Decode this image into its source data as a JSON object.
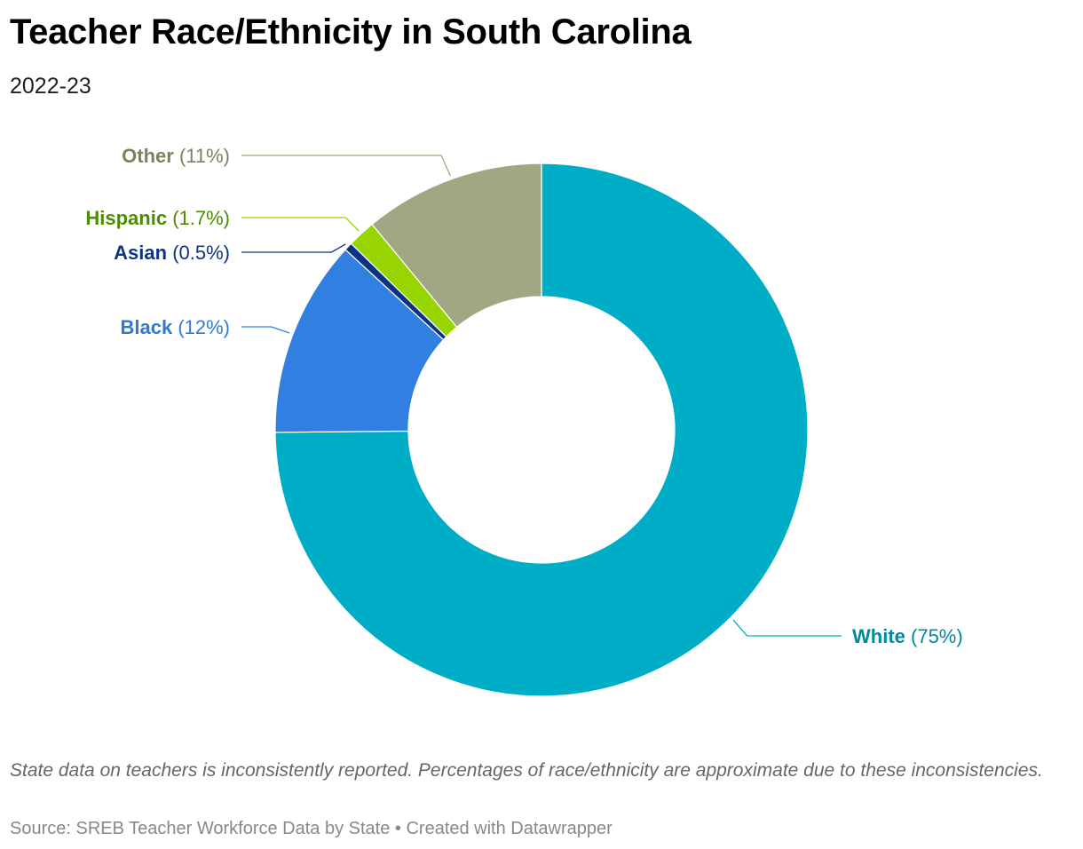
{
  "header": {
    "title": "Teacher Race/Ethnicity in South Carolina",
    "subtitle": "2022-23"
  },
  "chart_data": {
    "type": "pie",
    "donut": true,
    "slices": [
      {
        "label": "White",
        "value": 75,
        "value_label": "(75%)",
        "color": "#00ADC6",
        "label_color": "#00899E"
      },
      {
        "label": "Black",
        "value": 12,
        "value_label": "(12%)",
        "color": "#3180E1",
        "label_color": "#2F7AD6"
      },
      {
        "label": "Asian",
        "value": 0.5,
        "value_label": "(0.5%)",
        "color": "#0F3383",
        "label_color": "#0F3383"
      },
      {
        "label": "Hispanic",
        "value": 1.7,
        "value_label": "(1.7%)",
        "color": "#98D400",
        "label_color": "#4D8C00"
      },
      {
        "label": "Other",
        "value": 11,
        "value_label": "(11%)",
        "color": "#A2A783",
        "label_color": "#7D8160"
      }
    ]
  },
  "footer": {
    "note": "State data on teachers is inconsistently reported. Percentages of race/ethnicity are approximate due to these inconsistencies.",
    "source": "Source: SREB Teacher Workforce Data by State • Created with Datawrapper"
  }
}
